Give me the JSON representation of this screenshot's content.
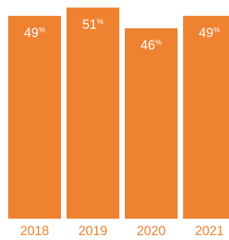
{
  "chart_data": {
    "type": "bar",
    "categories": [
      "2018",
      "2019",
      "2020",
      "2021"
    ],
    "values": [
      49,
      51,
      46,
      49
    ],
    "value_suffix": "%",
    "bar_color": "#ef8231",
    "grid": false,
    "legend": "none",
    "ylim": [
      0,
      51
    ]
  }
}
